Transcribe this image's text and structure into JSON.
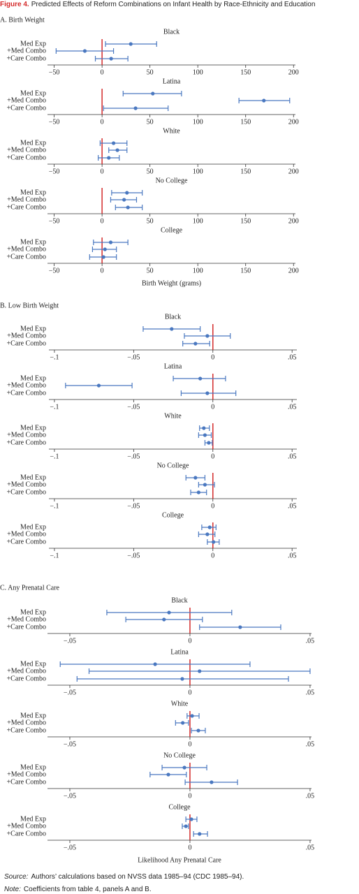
{
  "figure_label": "Figure 4.",
  "title": "Predicted Effects of Reform Combinations on Infant Health by Race-Ethnicity and Education",
  "sections": [
    {
      "heading": "A. Birth Weight"
    },
    {
      "heading": "B. Low Birth Weight"
    },
    {
      "heading": "C. Any Prenatal Care"
    }
  ],
  "chart_data": [
    {
      "type": "dot-whisker",
      "title": "Black",
      "categories": [
        "Med Exp",
        "+Med Combo",
        "+Care Combo"
      ],
      "values": [
        30,
        -18,
        9.5
      ],
      "low": [
        3.6,
        -48,
        -7
      ],
      "high": [
        57,
        12,
        27
      ],
      "xlim": [
        -57,
        202
      ],
      "xticks": [
        {
          "value": -50,
          "label": "−50"
        },
        0,
        50,
        100,
        150,
        200
      ],
      "reference_line": 0,
      "color": "#4a78c0",
      "reference_color": "#d42a2a"
    },
    {
      "type": "dot-whisker",
      "title": "Latina",
      "categories": [
        "Med Exp",
        "+Med Combo",
        "+Care Combo"
      ],
      "values": [
        53,
        169,
        35
      ],
      "low": [
        22,
        143,
        1.5
      ],
      "high": [
        83,
        196,
        69
      ],
      "xlim": [
        -57,
        202
      ],
      "xticks": [
        {
          "value": -50,
          "label": "−50"
        },
        0,
        50,
        100,
        150,
        200
      ],
      "reference_line": 0,
      "color": "#4a78c0",
      "reference_color": "#d42a2a"
    },
    {
      "type": "dot-whisker",
      "title": "White",
      "categories": [
        "Med Exp",
        "+Med Combo",
        "+Care Combo"
      ],
      "values": [
        12,
        16,
        7
      ],
      "low": [
        -2,
        7,
        -4
      ],
      "high": [
        26,
        26,
        18
      ],
      "xlim": [
        -57,
        202
      ],
      "xticks": [
        {
          "value": -50,
          "label": "−50"
        },
        0,
        50,
        100,
        150,
        200
      ],
      "reference_line": 0,
      "color": "#4a78c0",
      "reference_color": "#d42a2a"
    },
    {
      "type": "dot-whisker",
      "title": "No College",
      "categories": [
        "Med Exp",
        "+Med Combo",
        "+Care Combo"
      ],
      "values": [
        26,
        23,
        27
      ],
      "low": [
        10,
        9,
        14
      ],
      "high": [
        42,
        36,
        42
      ],
      "xlim": [
        -57,
        202
      ],
      "xticks": [
        {
          "value": -50,
          "label": "−50"
        },
        0,
        50,
        100,
        150,
        200
      ],
      "reference_line": 0,
      "color": "#4a78c0",
      "reference_color": "#d42a2a"
    },
    {
      "type": "dot-whisker",
      "title": "College",
      "categories": [
        "Med Exp",
        "+Med Combo",
        "+Care Combo"
      ],
      "values": [
        9,
        3,
        1.5
      ],
      "low": [
        -9,
        -10,
        -13
      ],
      "high": [
        27,
        15,
        15
      ],
      "xlim": [
        -57,
        202
      ],
      "xticks": [
        {
          "value": -50,
          "label": "−50"
        },
        0,
        50,
        100,
        150,
        200
      ],
      "reference_line": 0,
      "color": "#4a78c0",
      "reference_color": "#d42a2a",
      "xlabel": "Birth Weight (grams)"
    },
    {
      "type": "dot-whisker",
      "title": "Black",
      "categories": [
        "Med Exp",
        "+Med Combo",
        "+Care Combo"
      ],
      "values": [
        -0.026,
        -0.0035,
        -0.011
      ],
      "low": [
        -0.044,
        -0.018,
        -0.019
      ],
      "high": [
        -0.008,
        0.011,
        -0.002
      ],
      "xlim": [
        -0.1035,
        0.053
      ],
      "xticks": [
        {
          "value": -0.1,
          "label": "−.1"
        },
        {
          "value": -0.05,
          "label": "−.05"
        },
        0,
        {
          "value": 0.05,
          "label": ".05"
        }
      ],
      "reference_line": 0,
      "color": "#4a78c0",
      "reference_color": "#d42a2a"
    },
    {
      "type": "dot-whisker",
      "title": "Latina",
      "categories": [
        "Med Exp",
        "+Med Combo",
        "+Care Combo"
      ],
      "values": [
        -0.008,
        -0.072,
        -0.0035
      ],
      "low": [
        -0.025,
        -0.093,
        -0.02
      ],
      "high": [
        0.008,
        -0.051,
        0.0145
      ],
      "xlim": [
        -0.1035,
        0.053
      ],
      "xticks": [
        {
          "value": -0.1,
          "label": "−.1"
        },
        {
          "value": -0.05,
          "label": "−.05"
        },
        0,
        {
          "value": 0.05,
          "label": ".05"
        }
      ],
      "reference_line": 0,
      "color": "#4a78c0",
      "reference_color": "#d42a2a"
    },
    {
      "type": "dot-whisker",
      "title": "White",
      "categories": [
        "Med Exp",
        "+Med Combo",
        "+Care Combo"
      ],
      "values": [
        -0.0057,
        -0.005,
        -0.0026
      ],
      "low": [
        -0.0084,
        -0.009,
        -0.005
      ],
      "high": [
        -0.0022,
        -0.001,
        -0.0004
      ],
      "xlim": [
        -0.1035,
        0.053
      ],
      "xticks": [
        {
          "value": -0.1,
          "label": "−.1"
        },
        {
          "value": -0.05,
          "label": "−.05"
        },
        0,
        {
          "value": 0.05,
          "label": ".05"
        }
      ],
      "reference_line": 0,
      "color": "#4a78c0",
      "reference_color": "#d42a2a"
    },
    {
      "type": "dot-whisker",
      "title": "No College",
      "categories": [
        "Med Exp",
        "+Med Combo",
        "+Care Combo"
      ],
      "values": [
        -0.011,
        -0.005,
        -0.009
      ],
      "low": [
        -0.017,
        -0.009,
        -0.014
      ],
      "high": [
        -0.005,
        0.001,
        -0.004
      ],
      "xlim": [
        -0.1035,
        0.053
      ],
      "xticks": [
        {
          "value": -0.1,
          "label": "−.1"
        },
        {
          "value": -0.05,
          "label": "−.05"
        },
        0,
        {
          "value": 0.05,
          "label": ".05"
        }
      ],
      "reference_line": 0,
      "color": "#4a78c0",
      "reference_color": "#d42a2a"
    },
    {
      "type": "dot-whisker",
      "title": "College",
      "categories": [
        "Med Exp",
        "+Med Combo",
        "+Care Combo"
      ],
      "values": [
        -0.002,
        -0.0035,
        0.0004
      ],
      "low": [
        -0.007,
        -0.009,
        -0.0035
      ],
      "high": [
        0.002,
        0.0013,
        0.004
      ],
      "xlim": [
        -0.1035,
        0.053
      ],
      "xticks": [
        {
          "value": -0.1,
          "label": "−.1"
        },
        {
          "value": -0.05,
          "label": "−.05"
        },
        0,
        {
          "value": 0.05,
          "label": ".05"
        }
      ],
      "reference_line": 0,
      "color": "#4a78c0",
      "reference_color": "#d42a2a"
    },
    {
      "type": "dot-whisker",
      "title": "Black",
      "categories": [
        "Med Exp",
        "+Med Combo",
        "+Care Combo"
      ],
      "values": [
        -0.0087,
        -0.0108,
        0.0209
      ],
      "low": [
        -0.0346,
        -0.0267,
        0.004
      ],
      "high": [
        0.0174,
        0.0052,
        0.0378
      ],
      "xlim": [
        -0.0593,
        0.0506
      ],
      "xticks": [
        {
          "value": -0.05,
          "label": "−.05"
        },
        0,
        {
          "value": 0.05,
          "label": ".05"
        }
      ],
      "reference_line": 0,
      "color": "#4a78c0",
      "reference_color": "#d42a2a"
    },
    {
      "type": "dot-whisker",
      "title": "Latina",
      "categories": [
        "Med Exp",
        "+Med Combo",
        "+Care Combo"
      ],
      "values": [
        -0.0145,
        0.004,
        -0.0032
      ],
      "low": [
        -0.054,
        -0.042,
        -0.047
      ],
      "high": [
        0.025,
        0.05,
        0.041
      ],
      "xlim": [
        -0.0593,
        0.0506
      ],
      "xticks": [
        {
          "value": -0.05,
          "label": "−.05"
        },
        0,
        {
          "value": 0.05,
          "label": ".05"
        }
      ],
      "reference_line": 0,
      "color": "#4a78c0",
      "reference_color": "#d42a2a"
    },
    {
      "type": "dot-whisker",
      "title": "White",
      "categories": [
        "Med Exp",
        "+Med Combo",
        "+Care Combo"
      ],
      "values": [
        0.0009,
        -0.003,
        0.0035
      ],
      "low": [
        -0.0012,
        -0.006,
        0.0006
      ],
      "high": [
        0.0038,
        -0.0006,
        0.0064
      ],
      "xlim": [
        -0.0593,
        0.0506
      ],
      "xticks": [
        {
          "value": -0.05,
          "label": "−.05"
        },
        0,
        {
          "value": 0.05,
          "label": ".05"
        }
      ],
      "reference_line": 0,
      "color": "#4a78c0",
      "reference_color": "#d42a2a"
    },
    {
      "type": "dot-whisker",
      "title": "No College",
      "categories": [
        "Med Exp",
        "+Med Combo",
        "+Care Combo"
      ],
      "values": [
        -0.0023,
        -0.009,
        0.009
      ],
      "low": [
        -0.0116,
        -0.0166,
        -0.002
      ],
      "high": [
        0.007,
        -0.0015,
        0.0198
      ],
      "xlim": [
        -0.0593,
        0.0506
      ],
      "xticks": [
        {
          "value": -0.05,
          "label": "−.05"
        },
        0,
        {
          "value": 0.05,
          "label": ".05"
        }
      ],
      "reference_line": 0,
      "color": "#4a78c0",
      "reference_color": "#d42a2a"
    },
    {
      "type": "dot-whisker",
      "title": "College",
      "categories": [
        "Med Exp",
        "+Med Combo",
        "+Care Combo"
      ],
      "values": [
        0.0006,
        -0.0017,
        0.004
      ],
      "low": [
        -0.0017,
        -0.0032,
        0.0015
      ],
      "high": [
        0.0029,
        -0.0006,
        0.0073
      ],
      "xlim": [
        -0.0593,
        0.0506
      ],
      "xticks": [
        {
          "value": -0.05,
          "label": "−.05"
        },
        0,
        {
          "value": 0.05,
          "label": ".05"
        }
      ],
      "reference_line": 0,
      "color": "#4a78c0",
      "reference_color": "#d42a2a",
      "xlabel": "Likelihood Any Prenatal Care"
    }
  ],
  "source_label": "Source:",
  "source": "Authors’ calculations based on NVSS data 1985–94 (CDC 1985–94).",
  "note_label": "Note:",
  "note": "Coefficients from table 4, panels A and B."
}
